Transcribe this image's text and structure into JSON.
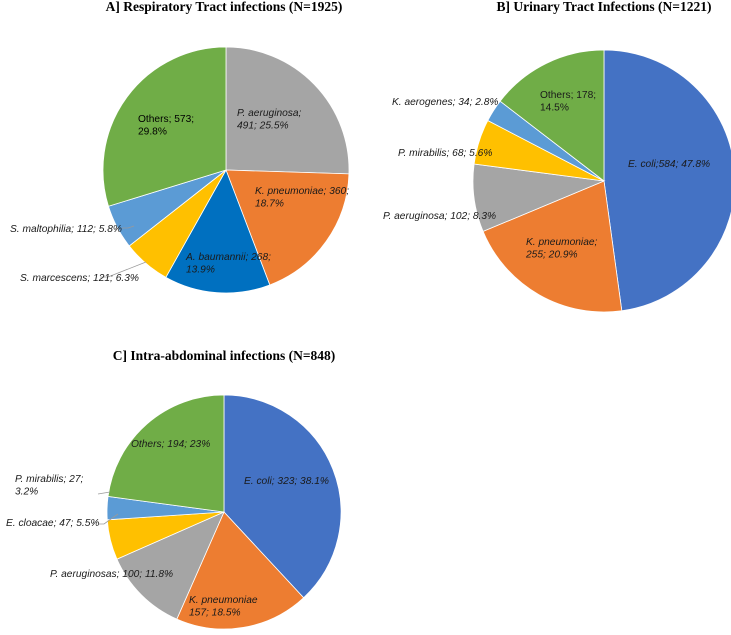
{
  "chart_data": [
    {
      "type": "pie",
      "title": "A] Respiratory Tract infections (N=1925)",
      "start": "12 o'clock",
      "direction": "clockwise",
      "slices": [
        {
          "name": "P. aeruginosa",
          "value": 491,
          "percent": 25.5,
          "color": "#A5A5A5",
          "italic": true,
          "text": [
            "P. aeruginosa;",
            "491; 25.5%"
          ],
          "placement": "inside",
          "leader": false
        },
        {
          "name": "K. pneumoniae",
          "value": 360,
          "percent": 18.7,
          "color": "#ED7D31",
          "italic": true,
          "text": [
            "K. pneumoniae; 360;",
            "18.7%"
          ],
          "placement": "inside",
          "leader": false
        },
        {
          "name": "A. baumannii",
          "value": 268,
          "percent": 13.9,
          "color": "#0070C0",
          "italic": true,
          "text": [
            "A. baumannii; 268;",
            "13.9%"
          ],
          "placement": "inside",
          "leader": false
        },
        {
          "name": "S. marcescens",
          "value": 121,
          "percent": 6.3,
          "color": "#FFC000",
          "italic": true,
          "text": [
            "S. marcescens; 121; 6.3%"
          ],
          "placement": "outside",
          "leader": true
        },
        {
          "name": "S. maltophilia",
          "value": 112,
          "percent": 5.8,
          "color": "#5B9BD5",
          "italic": true,
          "text": [
            "S. maltophilia; 112; 5.8%"
          ],
          "placement": "outside",
          "leader": true
        },
        {
          "name": "Others",
          "value": 573,
          "percent": 29.8,
          "color": "#70AD47",
          "italic": false,
          "text": [
            "Others; 573;",
            "29.8%"
          ],
          "placement": "inside",
          "leader": false
        }
      ]
    },
    {
      "type": "pie",
      "title": "B] Urinary Tract Infections (N=1221)",
      "start": "12 o'clock",
      "direction": "clockwise",
      "slices": [
        {
          "name": "E. coli",
          "value": 584,
          "percent": 47.8,
          "color": "#4472C4",
          "italic": true,
          "text": [
            "E. coli;584; 47.8%"
          ],
          "placement": "inside",
          "leader": false
        },
        {
          "name": "K. pneumoniae",
          "value": 255,
          "percent": 20.9,
          "color": "#ED7D31",
          "italic": true,
          "text": [
            "K. pneumoniae;",
            "255; 20.9%"
          ],
          "placement": "inside",
          "leader": false
        },
        {
          "name": "P. aeruginosa",
          "value": 102,
          "percent": 8.3,
          "color": "#A5A5A5",
          "italic": true,
          "text": [
            "P. aeruginosa; 102; 8.3%"
          ],
          "placement": "outside",
          "leader": false
        },
        {
          "name": "P. mirabilis",
          "value": 68,
          "percent": 5.6,
          "color": "#FFC000",
          "italic": true,
          "text": [
            "P. mirabilis; 68; 5.6%"
          ],
          "placement": "outside",
          "leader": false
        },
        {
          "name": "K. aerogenes",
          "value": 34,
          "percent": 2.8,
          "color": "#5B9BD5",
          "italic": true,
          "text": [
            "K. aerogenes; 34; 2.8%"
          ],
          "placement": "outside",
          "leader": false
        },
        {
          "name": "Others",
          "value": 178,
          "percent": 14.5,
          "color": "#70AD47",
          "italic": false,
          "text": [
            "Others; 178;",
            "14.5%"
          ],
          "placement": "inside",
          "leader": false
        }
      ]
    },
    {
      "type": "pie",
      "title": "C] Intra-abdominal infections (N=848)",
      "start": "12 o'clock",
      "direction": "clockwise",
      "slices": [
        {
          "name": "E. coli",
          "value": 323,
          "percent": 38.1,
          "color": "#4472C4",
          "italic": true,
          "text": [
            "E. coli; 323; 38.1%"
          ],
          "placement": "inside",
          "leader": false
        },
        {
          "name": "K. pneumoniae",
          "value": 157,
          "percent": 18.5,
          "color": "#ED7D31",
          "italic": true,
          "text": [
            "K. pneumoniae",
            "157; 18.5%"
          ],
          "placement": "inside",
          "leader": false
        },
        {
          "name": "P. aeruginosas",
          "value": 100,
          "percent": 11.8,
          "color": "#A5A5A5",
          "italic": true,
          "text": [
            "P. aeruginosas; 100; 11.8%"
          ],
          "placement": "outside",
          "leader": false
        },
        {
          "name": "E. cloacae",
          "value": 47,
          "percent": 5.5,
          "color": "#FFC000",
          "italic": true,
          "text": [
            "E. cloacae; 47; 5.5%"
          ],
          "placement": "outside",
          "leader": true
        },
        {
          "name": "P. mirabilis",
          "value": 27,
          "percent": 3.2,
          "color": "#5B9BD5",
          "italic": true,
          "text": [
            "P. mirabilis; 27;",
            "3.2%"
          ],
          "placement": "outside",
          "leader": true
        },
        {
          "name": "Others",
          "value": 194,
          "percent": 23,
          "color": "#70AD47",
          "italic": true,
          "text": [
            "Others; 194; 23%"
          ],
          "placement": "inside",
          "leader": false
        }
      ]
    }
  ]
}
